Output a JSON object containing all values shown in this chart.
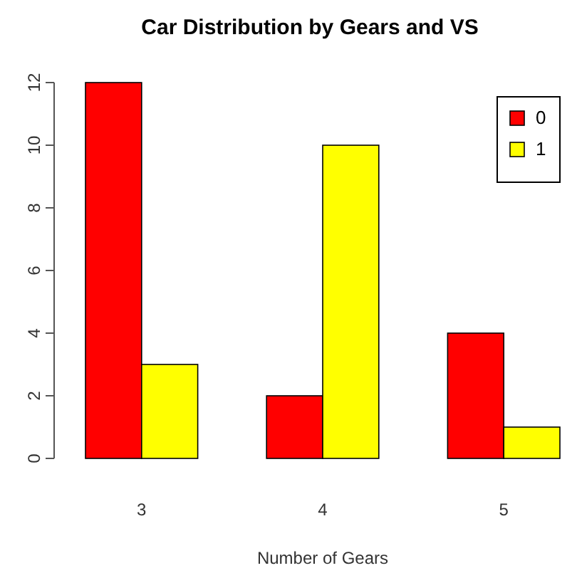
{
  "chart_data": {
    "type": "bar",
    "title": "Car Distribution by Gears and VS",
    "xlabel": "Number of Gears",
    "categories": [
      "3",
      "4",
      "5"
    ],
    "series": [
      {
        "name": "0",
        "color": "#ff0000",
        "values": [
          12,
          2,
          4
        ]
      },
      {
        "name": "1",
        "color": "#ffff00",
        "values": [
          3,
          10,
          1
        ]
      }
    ],
    "ylim": [
      0,
      12
    ],
    "yticks": [
      0,
      2,
      4,
      6,
      8,
      10,
      12
    ],
    "grid": false,
    "legend": "top right"
  }
}
